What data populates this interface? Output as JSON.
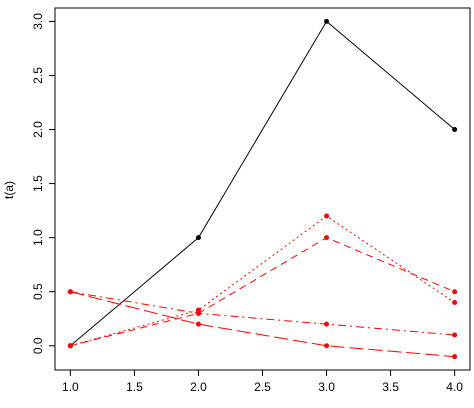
{
  "chart_data": {
    "type": "line",
    "ylabel": "t(a)",
    "xlim": [
      0.88,
      4.12
    ],
    "ylim": [
      -0.224,
      3.124
    ],
    "xticks": [
      {
        "value": 1,
        "label": "1.0"
      },
      1.5,
      {
        "value": 2,
        "label": "2.0"
      },
      2.5,
      {
        "value": 3,
        "label": "3.0"
      },
      3.5,
      {
        "value": 4,
        "label": "4.0"
      }
    ],
    "yticks": [
      {
        "value": 0,
        "label": "0.0"
      },
      0.5,
      {
        "value": 1,
        "label": "1.0"
      },
      1.5,
      {
        "value": 2,
        "label": "2.0"
      },
      2.5,
      {
        "value": 3,
        "label": "3.0"
      }
    ],
    "grid": false,
    "x": [
      1,
      2,
      3,
      4
    ],
    "series": [
      {
        "color": "#000000",
        "linestyle": "solid",
        "values": [
          0,
          1,
          3,
          2
        ]
      },
      {
        "color": "#ff0000",
        "linestyle": "dotted",
        "values": [
          0,
          0.33,
          1.2,
          0.4
        ]
      },
      {
        "color": "#ff0000",
        "linestyle": "dashed",
        "values": [
          0,
          0.3,
          1.0,
          0.5
        ]
      },
      {
        "color": "#ff0000",
        "linestyle": "dashdot",
        "values": [
          0.5,
          0.3,
          0.2,
          0.1
        ]
      },
      {
        "color": "#ff0000",
        "linestyle": "longdash",
        "values": [
          0.5,
          0.2,
          0,
          -0.1
        ]
      }
    ]
  }
}
